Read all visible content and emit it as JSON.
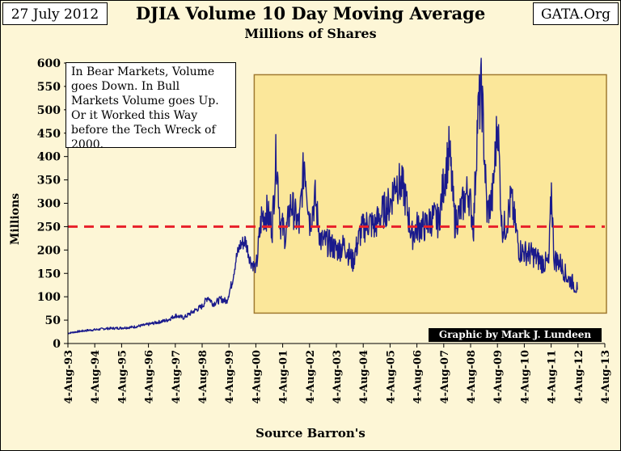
{
  "header": {
    "date": "27 July 2012",
    "site": "GATA.Org"
  },
  "chart_data": {
    "type": "line",
    "title": "DJIA Volume 10 Day Moving Average",
    "subtitle": "Millions of Shares",
    "xlabel": "Source Barron's",
    "ylabel": "Millions",
    "ylim": [
      0,
      600
    ],
    "yticks": [
      0,
      50,
      100,
      150,
      200,
      250,
      300,
      350,
      400,
      450,
      500,
      550,
      600
    ],
    "xlim": [
      1993.59,
      2013.59
    ],
    "xtick_labels": [
      "4-Aug-93",
      "4-Aug-94",
      "4-Aug-95",
      "4-Aug-96",
      "4-Aug-97",
      "4-Aug-98",
      "4-Aug-99",
      "4-Aug-00",
      "4-Aug-01",
      "4-Aug-02",
      "4-Aug-03",
      "4-Aug-04",
      "4-Aug-05",
      "4-Aug-06",
      "4-Aug-07",
      "4-Aug-08",
      "4-Aug-09",
      "4-Aug-10",
      "4-Aug-11",
      "4-Aug-12",
      "4-Aug-13"
    ],
    "reference_line": {
      "value": 250,
      "style": "dashed",
      "color": "#e8202a"
    },
    "highlight_region": {
      "x_start": 2000.59,
      "x_end": 2013.59,
      "y_start": 65,
      "y_end": 575,
      "color": "#fbe79a"
    },
    "annotation": "In Bear Markets, Volume goes Down.  In Bull Markets Volume goes Up.  Or it Worked this Way before the Tech Wreck of 2000.",
    "credit": "Graphic by Mark J. Lundeen",
    "series": [
      {
        "name": "DJIA 10 Day MA Volume",
        "color": "#1a1a8c",
        "x": [
          1993.59,
          1993.9,
          1994.3,
          1994.7,
          1995.0,
          1995.5,
          1996.0,
          1996.5,
          1996.9,
          1997.3,
          1997.6,
          1997.9,
          1998.3,
          1998.6,
          1998.8,
          1999.0,
          1999.3,
          1999.5,
          1999.7,
          1999.85,
          2000.0,
          2000.2,
          2000.4,
          2000.6,
          2000.8,
          2001.0,
          2001.2,
          2001.35,
          2001.5,
          2001.7,
          2001.9,
          2002.2,
          2002.4,
          2002.6,
          2002.8,
          2003.0,
          2003.3,
          2003.6,
          2003.9,
          2004.2,
          2004.5,
          2004.8,
          2005.0,
          2005.3,
          2005.6,
          2005.8,
          2006.1,
          2006.4,
          2006.6,
          2006.9,
          2007.2,
          2007.4,
          2007.6,
          2007.8,
          2008.0,
          2008.2,
          2008.5,
          2008.7,
          2008.85,
          2009.0,
          2009.2,
          2009.4,
          2009.6,
          2009.75,
          2009.9,
          2010.1,
          2010.4,
          2010.6,
          2010.9,
          2011.2,
          2011.5,
          2011.6,
          2011.7,
          2011.9,
          2012.2,
          2012.4,
          2012.57
        ],
        "values": [
          22,
          25,
          28,
          30,
          32,
          33,
          35,
          40,
          45,
          50,
          60,
          55,
          70,
          80,
          100,
          85,
          95,
          90,
          130,
          180,
          210,
          220,
          175,
          160,
          270,
          280,
          250,
          410,
          260,
          230,
          300,
          250,
          395,
          260,
          310,
          220,
          215,
          200,
          210,
          175,
          240,
          260,
          250,
          280,
          300,
          350,
          330,
          230,
          250,
          250,
          270,
          260,
          350,
          415,
          260,
          280,
          330,
          250,
          480,
          545,
          280,
          310,
          480,
          250,
          250,
          310,
          200,
          195,
          190,
          175,
          170,
          330,
          180,
          175,
          140,
          130,
          115
        ]
      }
    ]
  }
}
